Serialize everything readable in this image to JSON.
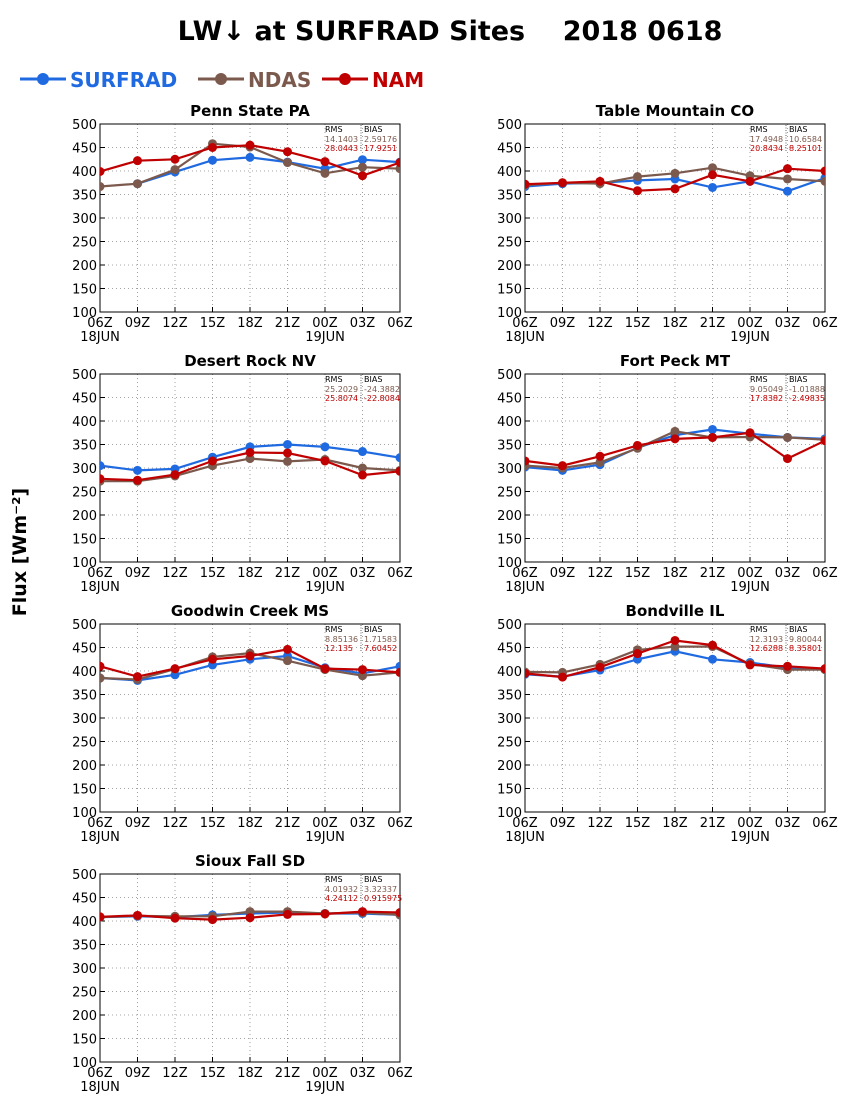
{
  "figure": {
    "title": "LW↓ at SURFRAD Sites    2018 0618",
    "ylabel": "Flux [Wm⁻²]"
  },
  "legend": [
    {
      "name": "SURFRAD",
      "color": "#1f6ae0"
    },
    {
      "name": "NDAS",
      "color": "#7b5a4d"
    },
    {
      "name": "NAM",
      "color": "#c00000"
    }
  ],
  "stats_header": {
    "rms": "RMS",
    "bias": "BIAS"
  },
  "chart_data": [
    {
      "type": "line",
      "title": "Penn State PA",
      "x": [
        "06Z",
        "09Z",
        "12Z",
        "15Z",
        "18Z",
        "21Z",
        "00Z",
        "03Z",
        "06Z"
      ],
      "date_labels": [
        "18JUN",
        "19JUN"
      ],
      "ylim": [
        100,
        500
      ],
      "yticks": [
        100,
        150,
        200,
        250,
        300,
        350,
        400,
        450,
        500
      ],
      "grid": true,
      "series": [
        {
          "name": "SURFRAD",
          "values": [
            null,
            373,
            398,
            423,
            429,
            419,
            405,
            424,
            419
          ]
        },
        {
          "name": "NDAS",
          "values": [
            367,
            373,
            403,
            458,
            451,
            418,
            395,
            408,
            405
          ]
        },
        {
          "name": "NAM",
          "values": [
            399,
            422,
            425,
            450,
            455,
            441,
            420,
            390,
            418
          ]
        }
      ],
      "stats": [
        {
          "rms": "14.1403",
          "bias": "2.59176"
        },
        {
          "rms": "28.0443",
          "bias": "17.9251"
        }
      ]
    },
    {
      "type": "line",
      "title": "Table Mountain CO",
      "x": [
        "06Z",
        "09Z",
        "12Z",
        "15Z",
        "18Z",
        "21Z",
        "00Z",
        "03Z",
        "06Z"
      ],
      "date_labels": [
        "18JUN",
        "19JUN"
      ],
      "ylim": [
        100,
        500
      ],
      "yticks": [
        100,
        150,
        200,
        250,
        300,
        350,
        400,
        450,
        500
      ],
      "grid": true,
      "series": [
        {
          "name": "SURFRAD",
          "values": [
            367,
            373,
            375,
            380,
            383,
            365,
            378,
            357,
            385
          ]
        },
        {
          "name": "NDAS",
          "values": [
            370,
            375,
            373,
            388,
            395,
            407,
            390,
            383,
            378
          ]
        },
        {
          "name": "NAM",
          "values": [
            372,
            375,
            378,
            358,
            362,
            392,
            378,
            405,
            400
          ]
        }
      ],
      "stats": [
        {
          "rms": "17.4948",
          "bias": "10.6584"
        },
        {
          "rms": "20.8434",
          "bias": "8.25101"
        }
      ]
    },
    {
      "type": "line",
      "title": "Desert Rock NV",
      "x": [
        "06Z",
        "09Z",
        "12Z",
        "15Z",
        "18Z",
        "21Z",
        "00Z",
        "03Z",
        "06Z"
      ],
      "date_labels": [
        "18JUN",
        "19JUN"
      ],
      "ylim": [
        100,
        500
      ],
      "yticks": [
        100,
        150,
        200,
        250,
        300,
        350,
        400,
        450,
        500
      ],
      "grid": true,
      "series": [
        {
          "name": "SURFRAD",
          "values": [
            305,
            295,
            298,
            323,
            345,
            350,
            345,
            335,
            322
          ]
        },
        {
          "name": "NDAS",
          "values": [
            272,
            272,
            283,
            305,
            320,
            314,
            318,
            300,
            295
          ]
        },
        {
          "name": "NAM",
          "values": [
            277,
            274,
            286,
            315,
            333,
            332,
            315,
            285,
            293
          ]
        }
      ],
      "stats": [
        {
          "rms": "25.2029",
          "bias": "-24.3882"
        },
        {
          "rms": "25.8074",
          "bias": "-22.8084"
        }
      ]
    },
    {
      "type": "line",
      "title": "Fort Peck MT",
      "x": [
        "06Z",
        "09Z",
        "12Z",
        "15Z",
        "18Z",
        "21Z",
        "00Z",
        "03Z",
        "06Z"
      ],
      "date_labels": [
        "18JUN",
        "19JUN"
      ],
      "ylim": [
        100,
        500
      ],
      "yticks": [
        100,
        150,
        200,
        250,
        300,
        350,
        400,
        450,
        500
      ],
      "grid": true,
      "series": [
        {
          "name": "SURFRAD",
          "values": [
            302,
            295,
            307,
            343,
            370,
            382,
            373,
            365,
            362
          ]
        },
        {
          "name": "NDAS",
          "values": [
            305,
            300,
            312,
            342,
            378,
            365,
            366,
            365,
            360
          ]
        },
        {
          "name": "NAM",
          "values": [
            315,
            305,
            325,
            348,
            362,
            365,
            375,
            320,
            358
          ]
        }
      ],
      "stats": [
        {
          "rms": "9.05049",
          "bias": "-1.01888"
        },
        {
          "rms": "17.8382",
          "bias": "-2.49835"
        }
      ]
    },
    {
      "type": "line",
      "title": "Goodwin Creek MS",
      "x": [
        "06Z",
        "09Z",
        "12Z",
        "15Z",
        "18Z",
        "21Z",
        "00Z",
        "03Z",
        "06Z"
      ],
      "date_labels": [
        "18JUN",
        "19JUN"
      ],
      "ylim": [
        100,
        500
      ],
      "yticks": [
        100,
        150,
        200,
        250,
        300,
        350,
        400,
        450,
        500
      ],
      "grid": true,
      "series": [
        {
          "name": "SURFRAD",
          "values": [
            385,
            380,
            392,
            413,
            425,
            432,
            407,
            395,
            410
          ]
        },
        {
          "name": "NDAS",
          "values": [
            385,
            382,
            404,
            430,
            438,
            422,
            403,
            390,
            397
          ]
        },
        {
          "name": "NAM",
          "values": [
            410,
            388,
            405,
            425,
            432,
            446,
            405,
            403,
            397
          ]
        }
      ],
      "stats": [
        {
          "rms": "8.85136",
          "bias": "1.71583"
        },
        {
          "rms": "12.135",
          "bias": "7.60452"
        }
      ]
    },
    {
      "type": "line",
      "title": "Bondville IL",
      "x": [
        "06Z",
        "09Z",
        "12Z",
        "15Z",
        "18Z",
        "21Z",
        "00Z",
        "03Z",
        "06Z"
      ],
      "date_labels": [
        "18JUN",
        "19JUN"
      ],
      "ylim": [
        100,
        500
      ],
      "yticks": [
        100,
        150,
        200,
        250,
        300,
        350,
        400,
        450,
        500
      ],
      "grid": true,
      "series": [
        {
          "name": "SURFRAD",
          "values": [
            393,
            388,
            402,
            425,
            442,
            425,
            418,
            407,
            403
          ]
        },
        {
          "name": "NDAS",
          "values": [
            398,
            397,
            414,
            445,
            452,
            452,
            415,
            403,
            403
          ]
        },
        {
          "name": "NAM",
          "values": [
            395,
            387,
            408,
            437,
            465,
            455,
            413,
            410,
            405
          ]
        }
      ],
      "stats": [
        {
          "rms": "12.3193",
          "bias": "9.80044"
        },
        {
          "rms": "12.6288",
          "bias": "8.35801"
        }
      ]
    },
    {
      "type": "line",
      "title": "Sioux Fall SD",
      "x": [
        "06Z",
        "09Z",
        "12Z",
        "15Z",
        "18Z",
        "21Z",
        "00Z",
        "03Z",
        "06Z"
      ],
      "date_labels": [
        "18JUN",
        "19JUN"
      ],
      "ylim": [
        100,
        500
      ],
      "yticks": [
        100,
        150,
        200,
        250,
        300,
        350,
        400,
        450,
        500
      ],
      "grid": true,
      "series": [
        {
          "name": "SURFRAD",
          "values": [
            408,
            410,
            408,
            413,
            416,
            418,
            416,
            416,
            413
          ]
        },
        {
          "name": "NDAS",
          "values": [
            408,
            411,
            410,
            410,
            420,
            420,
            416,
            418,
            413
          ]
        },
        {
          "name": "NAM",
          "values": [
            409,
            412,
            406,
            403,
            407,
            414,
            415,
            420,
            418
          ]
        }
      ],
      "stats": [
        {
          "rms": "4.01932",
          "bias": "3.32337"
        },
        {
          "rms": "4.24112",
          "bias": "0.915975"
        }
      ]
    }
  ]
}
